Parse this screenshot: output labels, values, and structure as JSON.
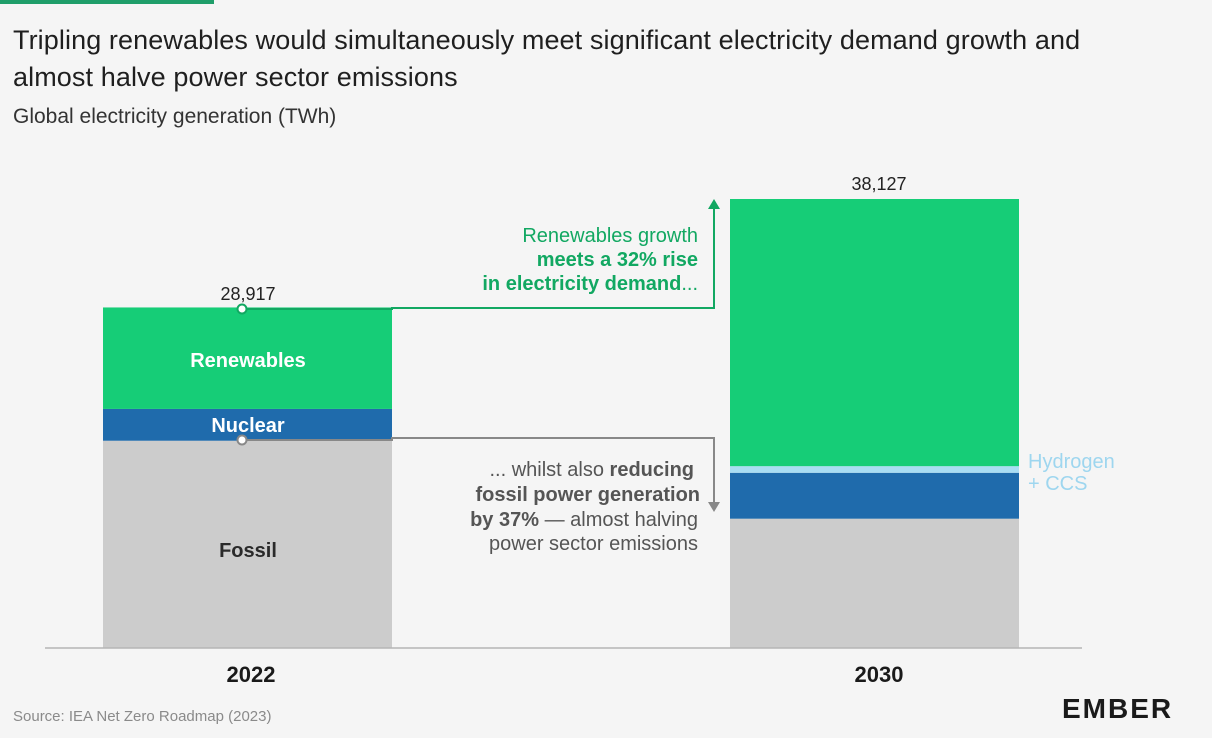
{
  "header": {
    "title": "Tripling renewables would simultaneously meet significant electricity demand growth and almost halve power sector emissions",
    "subtitle": "Global electricity generation (TWh)"
  },
  "footer": {
    "source": "Source: IEA Net Zero Roadmap (2023)",
    "logo_text": "EMBER"
  },
  "colors": {
    "renewables": "#16cd77",
    "nuclear": "#1f6bac",
    "hydrogen_ccs": "#a9ddf3",
    "fossil": "#cccccc",
    "annotation_green": "#12a862",
    "annotation_gray": "#888888",
    "hydrogen_label": "#9ed6ef"
  },
  "chart_data": {
    "type": "bar",
    "stacked": true,
    "categories": [
      "2022",
      "2030"
    ],
    "series": [
      {
        "name": "Fossil",
        "values": [
          17600,
          10980
        ]
      },
      {
        "name": "Nuclear",
        "values": [
          2700,
          3900
        ]
      },
      {
        "name": "Hydrogen + CCS",
        "values": [
          0,
          560
        ]
      },
      {
        "name": "Renewables",
        "values": [
          8617,
          22687
        ]
      }
    ],
    "totals": [
      "28,917",
      "38,127"
    ],
    "total_values": [
      28917,
      38127
    ],
    "ylim": [
      0,
      38127
    ],
    "in_bar_labels": [
      "Renewables",
      "Nuclear",
      "Fossil"
    ],
    "side_label": [
      "Hydrogen",
      "+ CCS"
    ],
    "annotations": {
      "renewables": {
        "line1": "Renewables growth",
        "line2_bold": "meets a 32% rise",
        "line3_bold": "in electricity demand",
        "line3_tail": "..."
      },
      "fossil": {
        "line1_plain": "... whilst also ",
        "line1_bold": "reducing",
        "line2_bold": "fossil power generation",
        "line3_bold": "by 37%",
        "line3_plain": " — almost halving",
        "line4": "power sector emissions"
      }
    }
  }
}
